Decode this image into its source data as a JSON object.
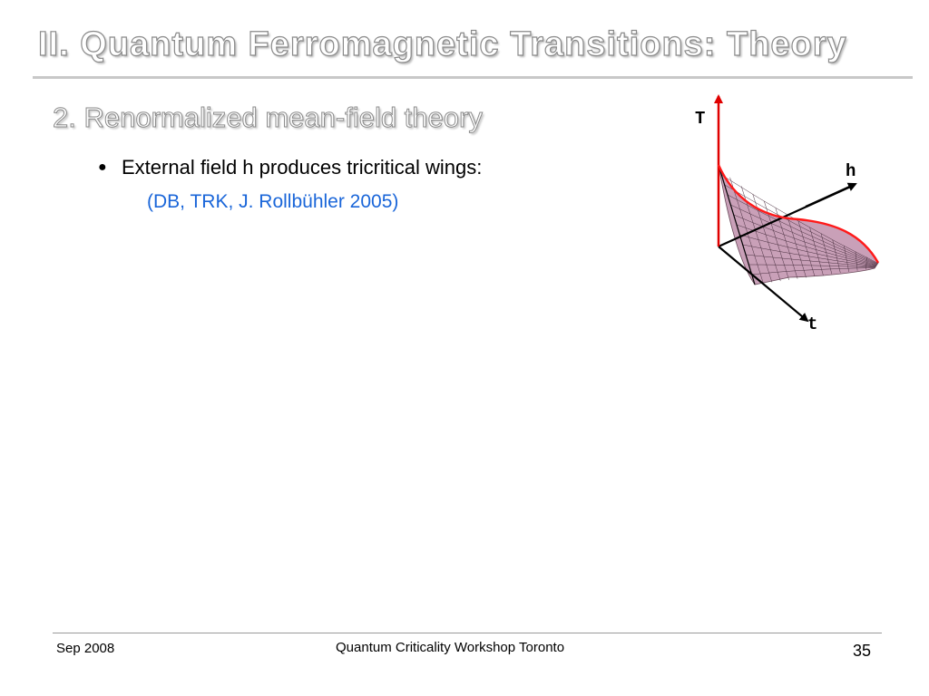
{
  "slide": {
    "title": "II. Quantum Ferromagnetic Transitions: Theory",
    "subtitle": "2. Renormalized mean-field theory",
    "bullet": {
      "marker": "●",
      "text": "External field h produces tricritical wings:"
    },
    "citation": "(DB, TRK, J. Rollbühler 2005)"
  },
  "diagram": {
    "axis_labels": {
      "T": "T",
      "h": "h",
      "t": "t"
    },
    "colors": {
      "surface_fill": "#c9a0b8",
      "mesh": "#4a3040",
      "wing_edge": "#ff1a1a",
      "axis": "#000000"
    }
  },
  "footer": {
    "date": "Sep 2008",
    "event": "Quantum Criticality Workshop Toronto",
    "page_number": "35"
  }
}
